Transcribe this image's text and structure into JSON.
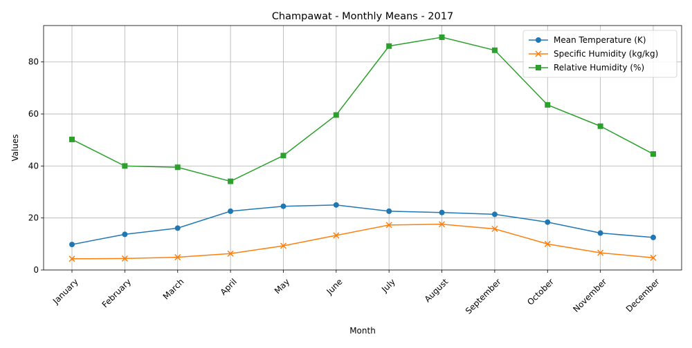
{
  "chart_data": {
    "type": "line",
    "title": "Champawat - Monthly Means - 2017",
    "xlabel": "Month",
    "ylabel": "Values",
    "categories": [
      "January",
      "February",
      "March",
      "April",
      "May",
      "June",
      "July",
      "August",
      "September",
      "October",
      "November",
      "December"
    ],
    "ylim": [
      0,
      94
    ],
    "yticks": [
      0,
      20,
      40,
      60,
      80
    ],
    "grid": true,
    "legend_position": "top-right",
    "series": [
      {
        "name": "Mean Temperature (K)",
        "color": "#1f77b4",
        "marker": "circle",
        "values": [
          9.8,
          13.7,
          16.1,
          22.6,
          24.5,
          25.0,
          22.6,
          22.1,
          21.4,
          18.4,
          14.2,
          12.5
        ]
      },
      {
        "name": "Specific Humidity (kg/kg)",
        "color": "#ff7f0e",
        "marker": "x",
        "values": [
          4.3,
          4.4,
          4.9,
          6.3,
          9.3,
          13.3,
          17.3,
          17.6,
          15.8,
          10.0,
          6.6,
          4.7
        ]
      },
      {
        "name": "Relative Humidity (%)",
        "color": "#2ca02c",
        "marker": "square",
        "values": [
          50.2,
          40.0,
          39.5,
          34.1,
          44.0,
          59.6,
          86.1,
          89.5,
          84.5,
          63.5,
          55.3,
          44.6
        ]
      }
    ]
  }
}
